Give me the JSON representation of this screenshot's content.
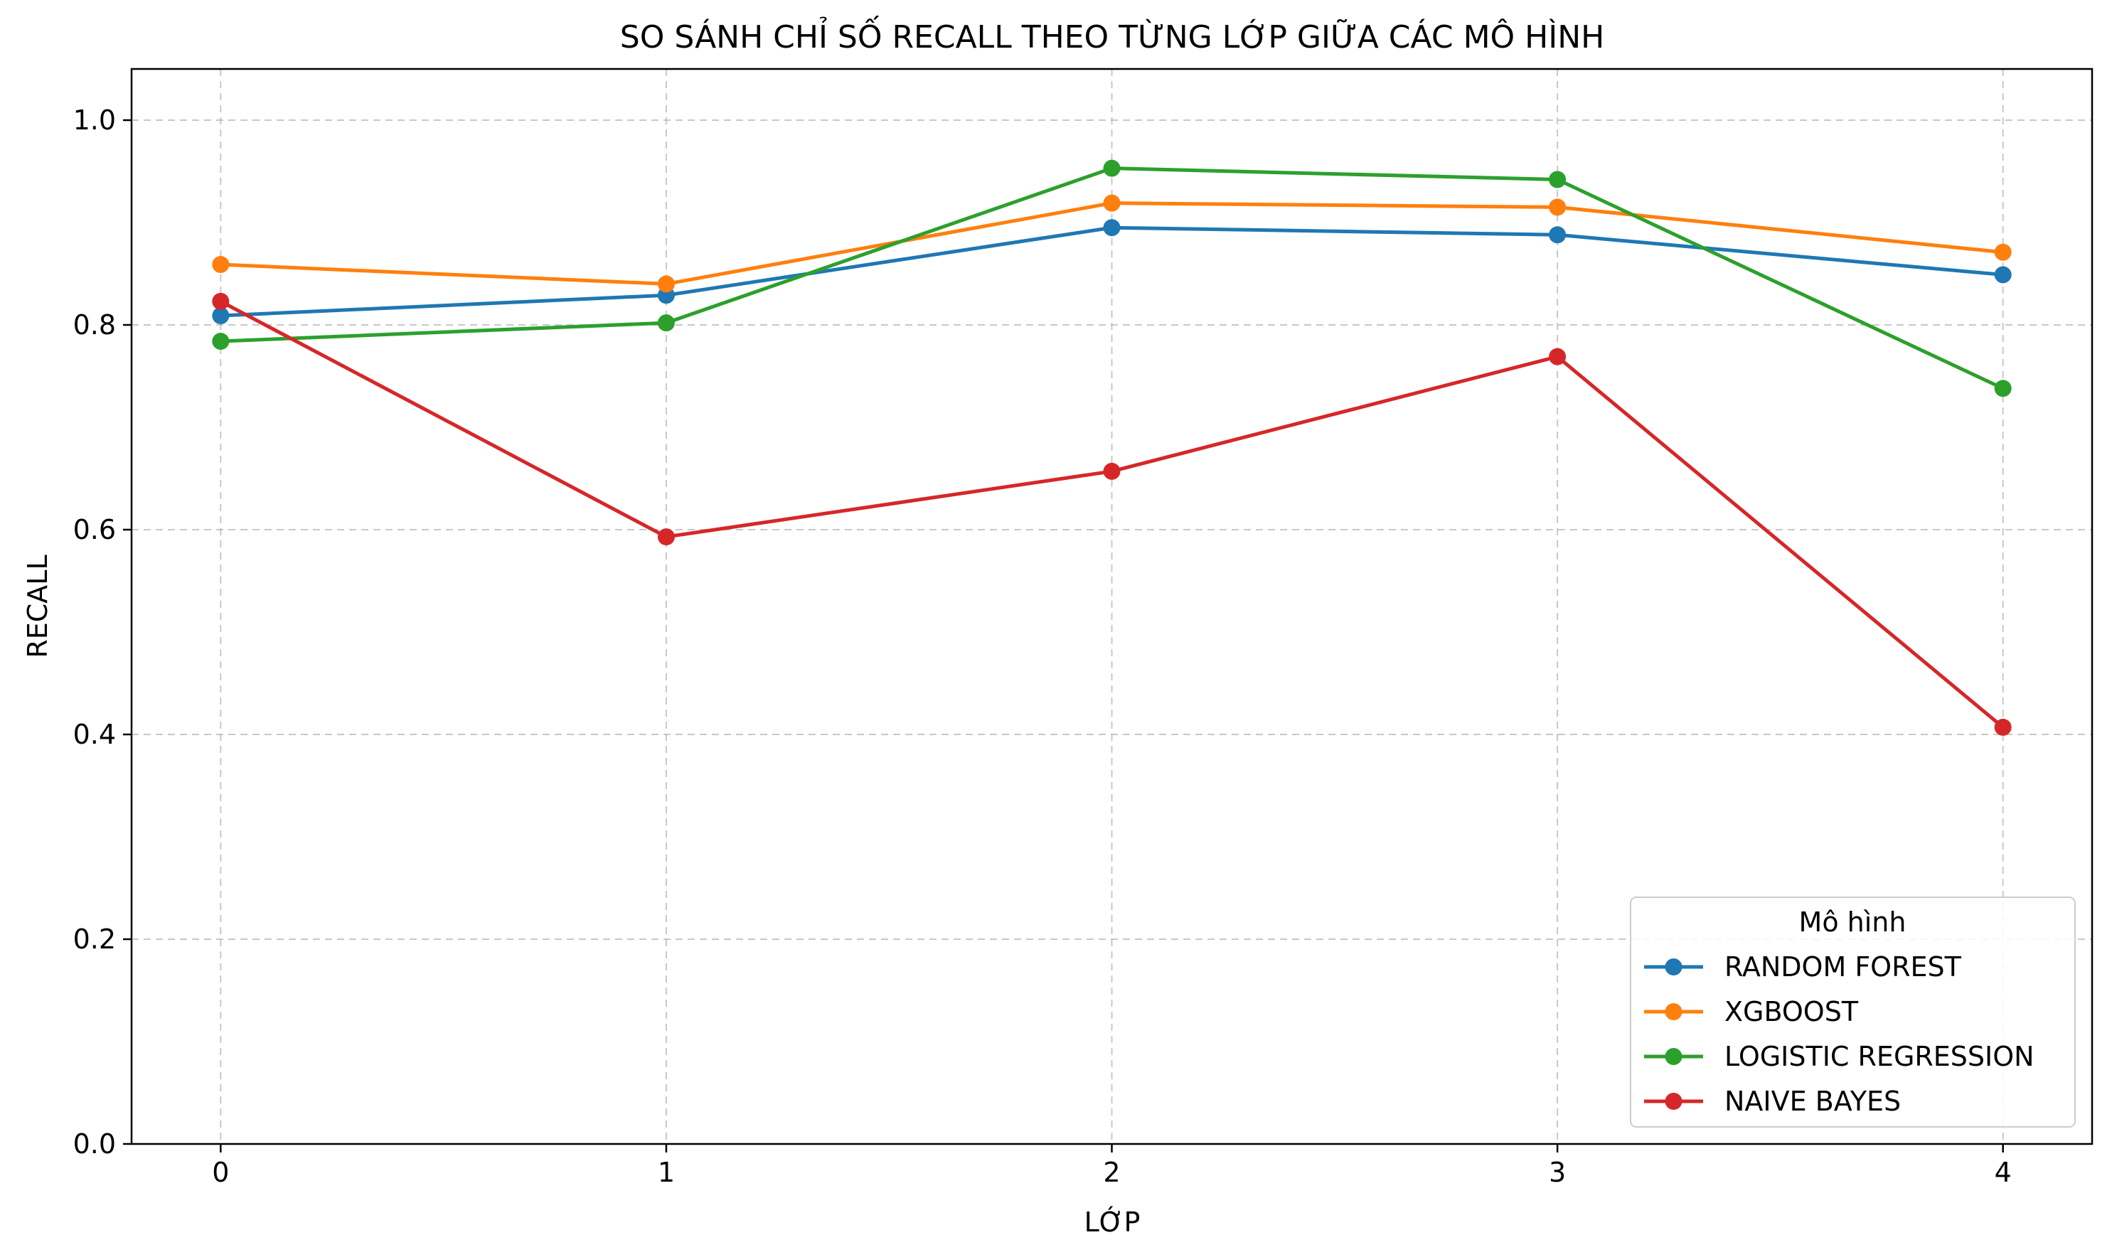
{
  "chart_data": {
    "type": "line",
    "title": "SO SÁNH CHỈ SỐ RECALL THEO TỪNG LỚP GIỮA CÁC MÔ HÌNH",
    "xlabel": "LỚP",
    "ylabel": "RECALL",
    "x": [
      0,
      1,
      2,
      3,
      4
    ],
    "x_tick_labels": [
      "0",
      "1",
      "2",
      "3",
      "4"
    ],
    "xlim": [
      -0.2,
      4.2
    ],
    "ylim": [
      0.0,
      1.05
    ],
    "y_ticks": [
      0.0,
      0.2,
      0.4,
      0.6,
      0.8,
      1.0
    ],
    "y_tick_labels": [
      "0.0",
      "0.2",
      "0.4",
      "0.6",
      "0.8",
      "1.0"
    ],
    "grid": true,
    "legend": {
      "title": "Mô hình",
      "placement": "lower-right"
    },
    "series": [
      {
        "name": "RANDOM FOREST",
        "color": "#1f77b4",
        "values": [
          0.809,
          0.829,
          0.895,
          0.888,
          0.849
        ]
      },
      {
        "name": "XGBOOST",
        "color": "#ff7f0e",
        "values": [
          0.859,
          0.84,
          0.919,
          0.915,
          0.871
        ]
      },
      {
        "name": "LOGISTIC REGRESSION",
        "color": "#2ca02c",
        "values": [
          0.784,
          0.802,
          0.953,
          0.942,
          0.738
        ]
      },
      {
        "name": "NAIVE BAYES",
        "color": "#d62728",
        "values": [
          0.823,
          0.593,
          0.657,
          0.769,
          0.407
        ]
      }
    ]
  }
}
